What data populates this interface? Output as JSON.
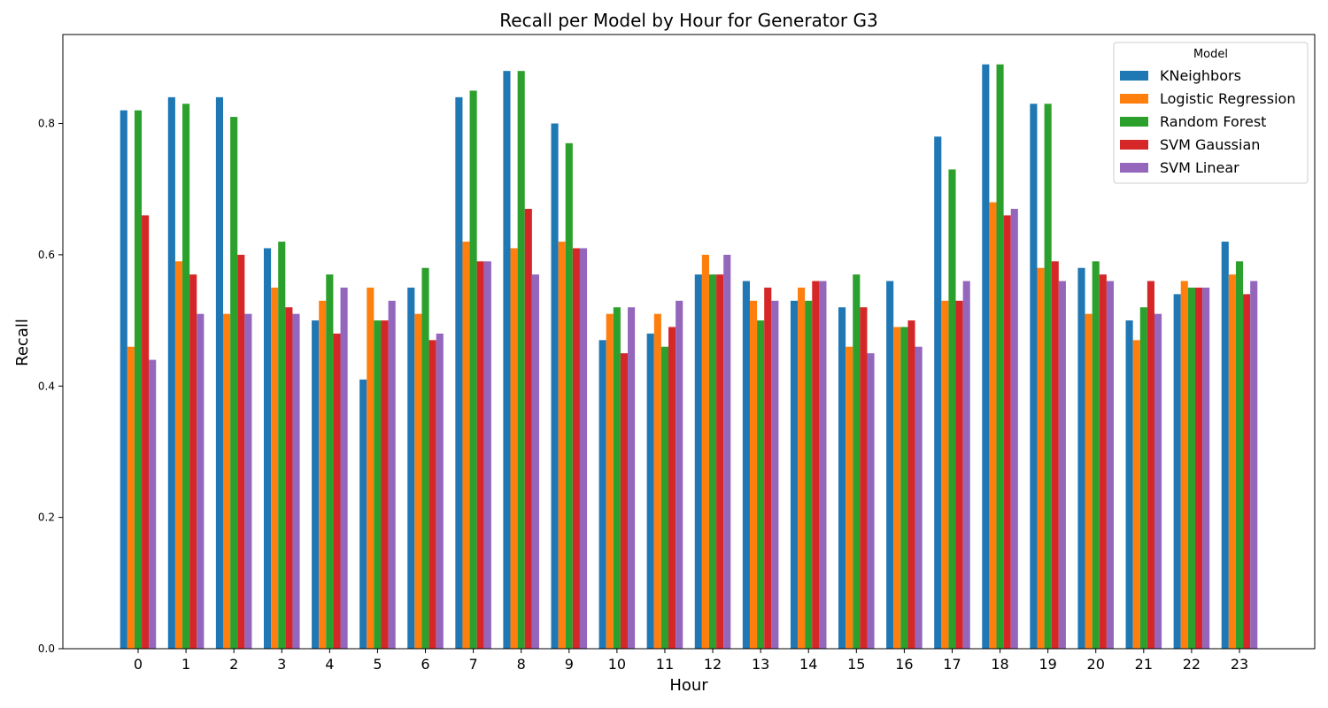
{
  "chart_data": {
    "type": "bar",
    "title": "Recall per Model by Hour for Generator G3",
    "xlabel": "Hour",
    "ylabel": "Recall",
    "ylim": [
      0,
      0.9355
    ],
    "yticks": [
      "0.0",
      "0.2",
      "0.4",
      "0.6",
      "0.8"
    ],
    "ytick_values": [
      0,
      0.2,
      0.4,
      0.6,
      0.8
    ],
    "grid": false,
    "legend": {
      "title": "Model",
      "placement": "top-right"
    },
    "categories": [
      "0",
      "1",
      "2",
      "3",
      "4",
      "5",
      "6",
      "7",
      "8",
      "9",
      "10",
      "11",
      "12",
      "13",
      "14",
      "15",
      "16",
      "17",
      "18",
      "19",
      "20",
      "21",
      "22",
      "23"
    ],
    "series": [
      {
        "name": "KNeighbors",
        "color": "#1f77b4",
        "values": [
          0.82,
          0.84,
          0.84,
          0.61,
          0.5,
          0.41,
          0.55,
          0.84,
          0.88,
          0.8,
          0.47,
          0.48,
          0.57,
          0.56,
          0.53,
          0.52,
          0.56,
          0.78,
          0.89,
          0.83,
          0.58,
          0.5,
          0.54,
          0.62
        ]
      },
      {
        "name": "Logistic Regression",
        "color": "#ff7f0e",
        "values": [
          0.46,
          0.59,
          0.51,
          0.55,
          0.53,
          0.55,
          0.51,
          0.62,
          0.61,
          0.62,
          0.51,
          0.51,
          0.6,
          0.53,
          0.55,
          0.46,
          0.49,
          0.53,
          0.68,
          0.58,
          0.51,
          0.47,
          0.56,
          0.57
        ]
      },
      {
        "name": "Random Forest",
        "color": "#2ca02c",
        "values": [
          0.82,
          0.83,
          0.81,
          0.62,
          0.57,
          0.5,
          0.58,
          0.85,
          0.88,
          0.77,
          0.52,
          0.46,
          0.57,
          0.5,
          0.53,
          0.57,
          0.49,
          0.73,
          0.89,
          0.83,
          0.59,
          0.52,
          0.55,
          0.59
        ]
      },
      {
        "name": "SVM Gaussian",
        "color": "#d62728",
        "values": [
          0.66,
          0.57,
          0.6,
          0.52,
          0.48,
          0.5,
          0.47,
          0.59,
          0.67,
          0.61,
          0.45,
          0.49,
          0.57,
          0.55,
          0.56,
          0.52,
          0.5,
          0.53,
          0.66,
          0.59,
          0.57,
          0.56,
          0.55,
          0.54
        ]
      },
      {
        "name": "SVM Linear",
        "color": "#9467bd",
        "values": [
          0.44,
          0.51,
          0.51,
          0.51,
          0.55,
          0.53,
          0.48,
          0.59,
          0.57,
          0.61,
          0.52,
          0.53,
          0.6,
          0.53,
          0.56,
          0.45,
          0.46,
          0.56,
          0.67,
          0.56,
          0.56,
          0.51,
          0.55,
          0.56
        ]
      }
    ]
  }
}
